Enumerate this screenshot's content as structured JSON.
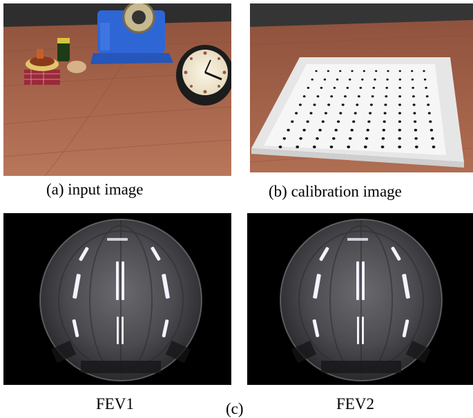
{
  "figure": {
    "panels": [
      {
        "id": "a",
        "caption": "(a) input image"
      },
      {
        "id": "b",
        "caption": "(b) calibration image"
      },
      {
        "id": "fev1",
        "caption": "FEV1"
      },
      {
        "id": "fev2",
        "caption": "FEV2"
      }
    ],
    "group_label": "(c)"
  },
  "colors": {
    "table_wood": "#9b5a43",
    "wall_dark": "#3a3838",
    "dispenser_blue": "#2f66d6",
    "board_white": "#f2f2f2",
    "fisheye_background": "#000000",
    "light_tube": "#f4f2ff"
  }
}
